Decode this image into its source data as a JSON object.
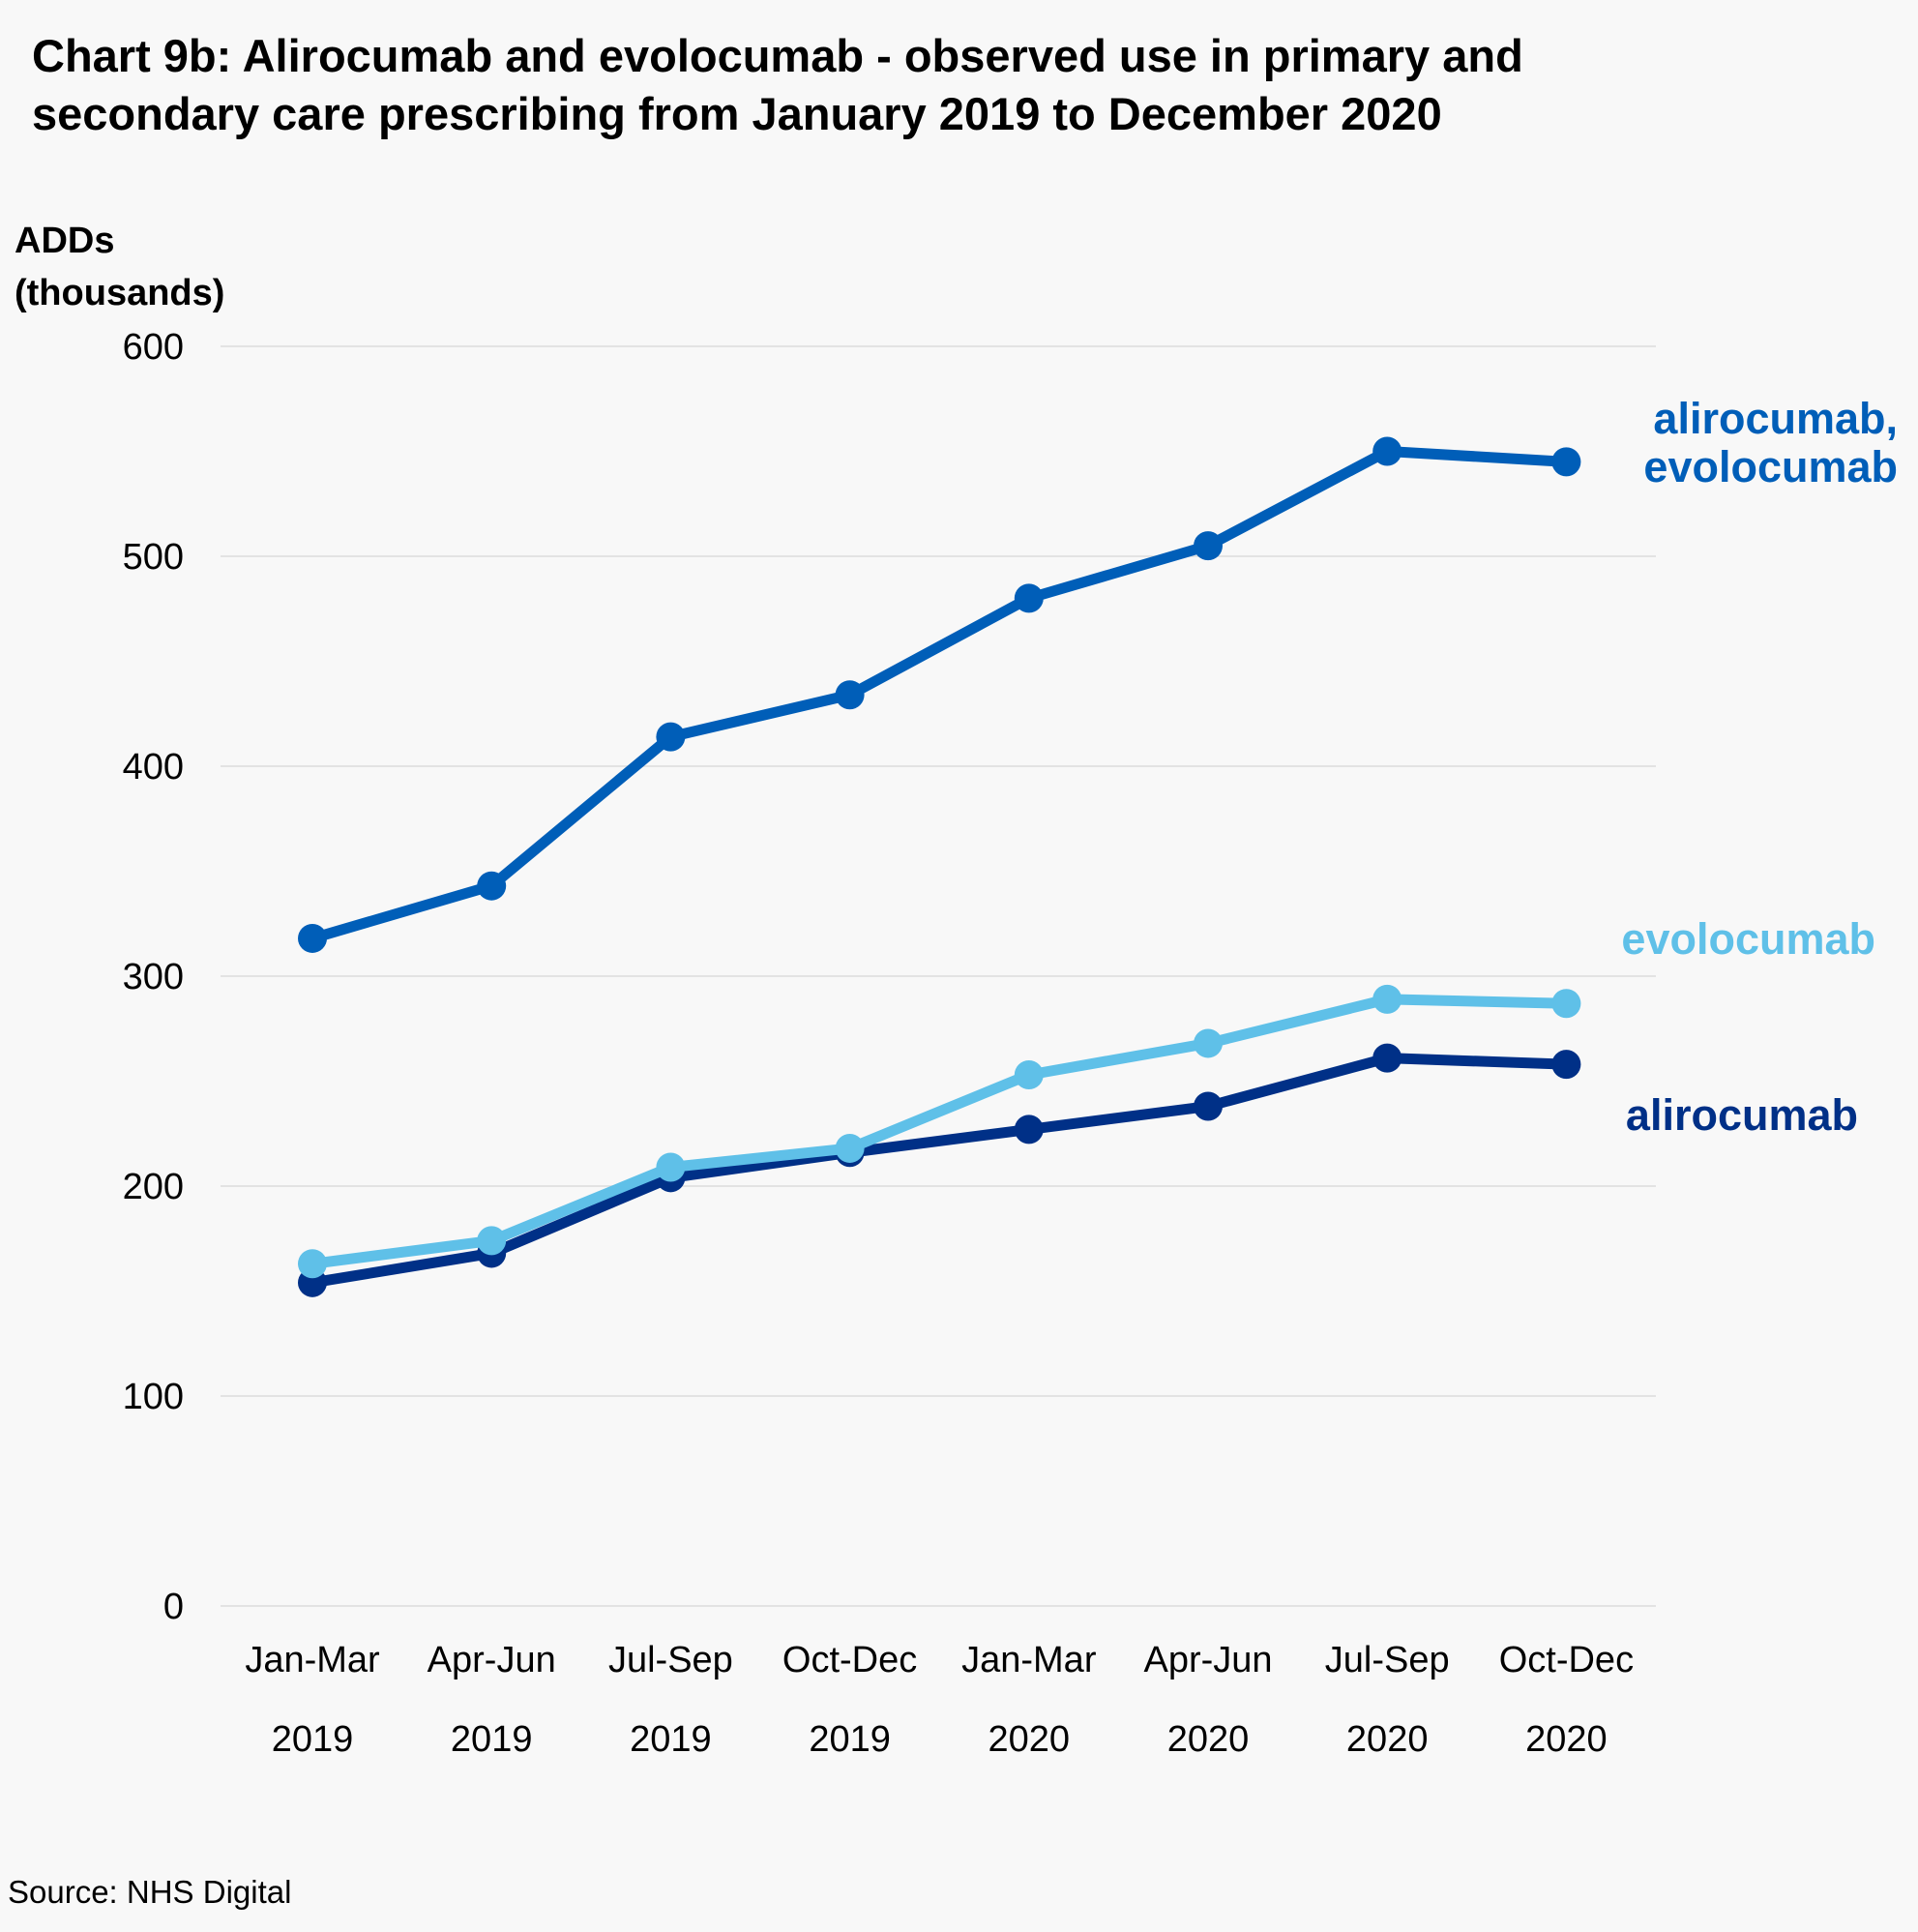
{
  "chart_data": {
    "type": "line",
    "title_lines": [
      "Chart 9b: Alirocumab and evolocumab - observed use in primary and",
      "secondary care prescribing from January 2019 to December 2020"
    ],
    "ylabel_lines": [
      "ADDs",
      "(thousands)"
    ],
    "ylim": [
      0,
      600
    ],
    "yticks": [
      "0",
      "100",
      "200",
      "300",
      "400",
      "500",
      "600"
    ],
    "grid": true,
    "categories": [
      [
        "Jan-Mar",
        "2019"
      ],
      [
        "Apr-Jun",
        "2019"
      ],
      [
        "Jul-Sep",
        "2019"
      ],
      [
        "Oct-Dec",
        "2019"
      ],
      [
        "Jan-Mar",
        "2020"
      ],
      [
        "Apr-Jun",
        "2020"
      ],
      [
        "Jul-Sep",
        "2020"
      ],
      [
        "Oct-Dec",
        "2020"
      ]
    ],
    "series": [
      {
        "name": "alirocumab, evolocumab",
        "label_lines": [
          "alirocumab,",
          "evolocumab"
        ],
        "color": "#005eb8",
        "values": [
          318,
          343,
          414,
          434,
          480,
          505,
          550,
          545
        ]
      },
      {
        "name": "alirocumab",
        "label_lines": [
          "alirocumab"
        ],
        "color": "#003087",
        "values": [
          154,
          168,
          204,
          216,
          227,
          238,
          261,
          258
        ]
      },
      {
        "name": "evolocumab",
        "label_lines": [
          "evolocumab"
        ],
        "color": "#5fc0e8",
        "values": [
          163,
          174,
          209,
          218,
          253,
          268,
          289,
          287
        ]
      }
    ],
    "source": "Source: NHS Digital"
  }
}
